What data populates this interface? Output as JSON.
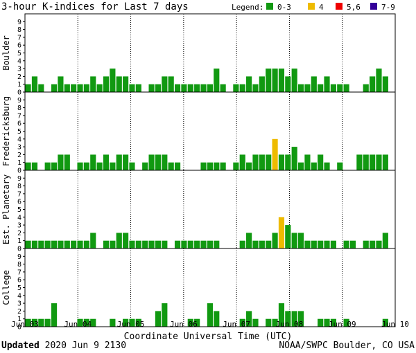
{
  "chart_data": {
    "type": "bar",
    "title": "3-hour K-indices for Last 7 days",
    "legend": {
      "label": "Legend:",
      "entries": [
        {
          "label": "0-3",
          "color": "#119911"
        },
        {
          "label": "4",
          "color": "#eebb00"
        },
        {
          "label": "5,6",
          "color": "#ee0000"
        },
        {
          "label": "7-9",
          "color": "#330099"
        }
      ]
    },
    "xlabel": "Coordinate Universal Time (UTC)",
    "xticks": [
      "Jun 03",
      "Jun 04",
      "Jun 05",
      "Jun 06",
      "Jun 07",
      "Jun 08",
      "Jun 09",
      "Jun 10"
    ],
    "ylim": [
      0,
      9
    ],
    "yticks": [
      "0",
      "1",
      "2",
      "3",
      "4",
      "5",
      "6",
      "7",
      "8",
      "9"
    ],
    "series": [
      {
        "name": "Boulder",
        "values": [
          1,
          2,
          1,
          0,
          1,
          2,
          1,
          1,
          1,
          1,
          2,
          1,
          2,
          3,
          2,
          2,
          1,
          1,
          0,
          1,
          1,
          2,
          2,
          1,
          1,
          1,
          1,
          1,
          1,
          3,
          1,
          0,
          1,
          1,
          2,
          1,
          2,
          3,
          3,
          3,
          2,
          3,
          1,
          1,
          2,
          1,
          2,
          1,
          1,
          1,
          0,
          0,
          1,
          2,
          3,
          2,
          0
        ]
      },
      {
        "name": "Fredericksburg",
        "values": [
          1,
          1,
          0,
          1,
          1,
          2,
          2,
          0,
          1,
          1,
          2,
          1,
          2,
          1,
          2,
          2,
          1,
          0,
          1,
          2,
          2,
          2,
          1,
          1,
          0,
          0,
          0,
          1,
          1,
          1,
          1,
          0,
          1,
          2,
          1,
          2,
          2,
          2,
          4,
          2,
          2,
          3,
          1,
          2,
          1,
          2,
          1,
          0,
          1,
          0,
          0,
          2,
          2,
          2,
          2,
          2,
          0
        ]
      },
      {
        "name": "Est. Planetary",
        "values": [
          1,
          1,
          1,
          1,
          1,
          1,
          1,
          1,
          1,
          1,
          2,
          0,
          1,
          1,
          2,
          2,
          1,
          1,
          1,
          1,
          1,
          1,
          0,
          1,
          1,
          1,
          1,
          1,
          1,
          1,
          0,
          0,
          0,
          1,
          2,
          1,
          1,
          1,
          2,
          4,
          3,
          2,
          2,
          1,
          1,
          1,
          1,
          1,
          0,
          1,
          1,
          0,
          1,
          1,
          1,
          2,
          0
        ]
      },
      {
        "name": "College",
        "values": [
          1,
          1,
          1,
          1,
          3,
          0,
          0,
          0,
          1,
          1,
          1,
          0,
          0,
          1,
          0,
          1,
          1,
          1,
          0,
          0,
          2,
          3,
          0,
          0,
          0,
          1,
          1,
          0,
          3,
          2,
          0,
          0,
          0,
          1,
          2,
          1,
          0,
          1,
          1,
          3,
          2,
          2,
          2,
          0,
          0,
          1,
          1,
          1,
          0,
          1,
          0,
          0,
          0,
          0,
          0,
          1,
          0
        ]
      }
    ]
  },
  "footer": {
    "updated_label": "Updated",
    "updated_value": "2020 Jun  9 2130",
    "credit": "NOAA/SWPC Boulder, CO USA"
  }
}
